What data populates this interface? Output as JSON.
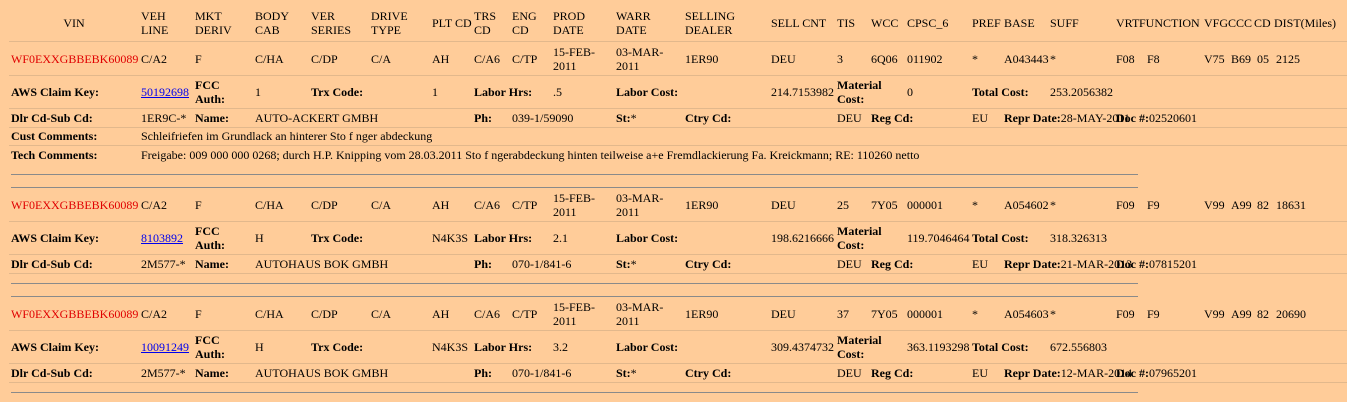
{
  "header": [
    "VIN",
    "VEH LINE",
    "MKT DERIV",
    "BODY CAB",
    "VER SERIES",
    "DRIVE TYPE",
    "PLT CD",
    "TRS CD",
    "ENG CD",
    "PROD DATE",
    "WARR DATE",
    "SELLING DEALER",
    "SELL CNT",
    "TIS",
    "WCC",
    "CPSC_6",
    "PREF",
    "BASE",
    "SUFF",
    "VRT",
    "FUNCTION",
    "VFG",
    "CCC",
    "CD",
    "DIST(Miles)"
  ],
  "labels": {
    "aws_claim_key": "AWS Claim Key:",
    "fcc_auth": "FCC Auth:",
    "trx_code": "Trx Code:",
    "labor_hrs": "Labor Hrs:",
    "labor_cost": "Labor Cost:",
    "material_cost": "Material Cost:",
    "total_cost": "Total Cost:",
    "dlr_cd": "Dlr Cd-Sub Cd:",
    "name": "Name:",
    "ph": "Ph:",
    "st": "St:",
    "ctry_cd": "Ctry Cd:",
    "reg_cd": "Reg Cd:",
    "repr_date": "Repr Date:",
    "doc": "Doc #:",
    "cust_comments": "Cust Comments:",
    "tech_comments": "Tech Comments:"
  },
  "records": [
    {
      "vehicle": [
        "WF0EXXGBBEBK60089",
        "C/A2",
        "F",
        "C/HA",
        "C/DP",
        "C/A",
        "AH",
        "C/A6",
        "C/TP",
        "15-FEB-2011",
        "03-MAR-2011",
        "1ER90",
        "DEU",
        "3",
        "6Q06",
        "011902",
        "*",
        "A043443",
        "*",
        "F08",
        "F8",
        "V75",
        "B69",
        "05",
        "2125"
      ],
      "claim": {
        "aws_claim_key": "50192698",
        "fcc_auth": "1",
        "trx_code": "1",
        "labor_hrs": ".5",
        "labor_cost": "214.7153982",
        "material_cost": "0",
        "total_cost": "253.2056382"
      },
      "dealer": {
        "dlr_cd": "1ER9C-*",
        "name": "AUTO-ACKERT GMBH",
        "ph": "039-1/59090",
        "st": "*",
        "ctry_cd": "DEU",
        "reg_cd": "EU",
        "repr_date": "28-MAY-2011",
        "doc": "02520601"
      },
      "cust_comments": "Schleifriefen im Grundlack an hinterer Sto f nger abdeckung",
      "tech_comments": "Freigabe: 009 000 000 0268; durch H.P. Knipping vom 28.03.2011 Sto f ngerabdeckung hinten teilweise a+e Fremdlackierung Fa. Kreickmann; RE: 110260 netto"
    },
    {
      "vehicle": [
        "WF0EXXGBBEBK60089",
        "C/A2",
        "F",
        "C/HA",
        "C/DP",
        "C/A",
        "AH",
        "C/A6",
        "C/TP",
        "15-FEB-2011",
        "03-MAR-2011",
        "1ER90",
        "DEU",
        "25",
        "7Y05",
        "000001",
        "*",
        "A054602",
        "*",
        "F09",
        "F9",
        "V99",
        "A99",
        "82",
        "18631"
      ],
      "claim": {
        "aws_claim_key": "8103892",
        "fcc_auth": "H",
        "trx_code": "N4K3S",
        "labor_hrs": "2.1",
        "labor_cost": "198.6216666",
        "material_cost": "119.7046464",
        "total_cost": "318.326313"
      },
      "dealer": {
        "dlr_cd": "2M577-*",
        "name": "AUTOHAUS BOK GMBH",
        "ph": "070-1/841-6",
        "st": "*",
        "ctry_cd": "DEU",
        "reg_cd": "EU",
        "repr_date": "21-MAR-2013",
        "doc": "07815201"
      }
    },
    {
      "vehicle": [
        "WF0EXXGBBEBK60089",
        "C/A2",
        "F",
        "C/HA",
        "C/DP",
        "C/A",
        "AH",
        "C/A6",
        "C/TP",
        "15-FEB-2011",
        "03-MAR-2011",
        "1ER90",
        "DEU",
        "37",
        "7Y05",
        "000001",
        "*",
        "A054603",
        "*",
        "F09",
        "F9",
        "V99",
        "A99",
        "82",
        "20690"
      ],
      "claim": {
        "aws_claim_key": "10091249",
        "fcc_auth": "H",
        "trx_code": "N4K3S",
        "labor_hrs": "3.2",
        "labor_cost": "309.4374732",
        "material_cost": "363.1193298",
        "total_cost": "672.556803"
      },
      "dealer": {
        "dlr_cd": "2M577-*",
        "name": "AUTOHAUS BOK GMBH",
        "ph": "070-1/841-6",
        "st": "*",
        "ctry_cd": "DEU",
        "reg_cd": "EU",
        "repr_date": "12-MAR-2014",
        "doc": "07965201"
      }
    }
  ]
}
